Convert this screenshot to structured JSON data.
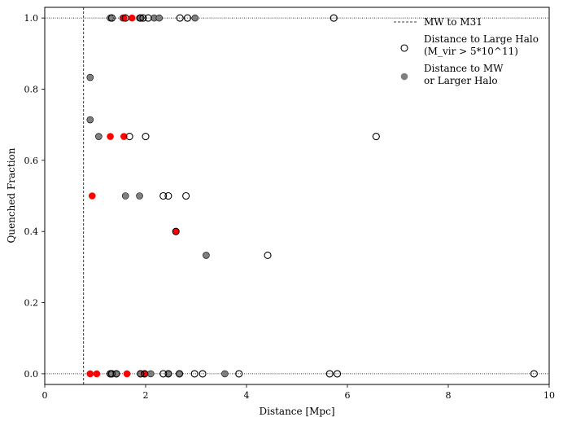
{
  "chart_data": {
    "type": "scatter",
    "xlabel": "Distance [Mpc]",
    "ylabel": "Quenched Fraction",
    "xlim": [
      0,
      10
    ],
    "ylim": [
      -0.03,
      1.03
    ],
    "xticks": [
      0,
      2,
      4,
      6,
      8,
      10
    ],
    "yticks": [
      0.0,
      0.2,
      0.4,
      0.6,
      0.8,
      1.0
    ],
    "xtick_labels": [
      "0",
      "2",
      "4",
      "6",
      "8",
      "10"
    ],
    "ytick_labels": [
      "0.0",
      "0.2",
      "0.4",
      "0.6",
      "0.8",
      "1.0"
    ],
    "grid": false,
    "legend_placement": "top-right",
    "reference_lines": [
      {
        "orientation": "vertical",
        "value": 0.77,
        "style": "dashed",
        "legend": "MW to M31"
      },
      {
        "orientation": "horizontal",
        "value": 1.0,
        "style": "dotted"
      },
      {
        "orientation": "horizontal",
        "value": 0.0,
        "style": "dotted"
      }
    ],
    "series": [
      {
        "name": "Distance to Large Halo (M_vir > 5*10^11)",
        "legend_lines": [
          "Distance to Large Halo",
          "(M_vir > 5*10^11)"
        ],
        "marker": "hollow-circle",
        "color": "#000000",
        "points": [
          [
            1.33,
            1.0
          ],
          [
            1.6,
            1.0
          ],
          [
            1.9,
            1.0
          ],
          [
            1.95,
            1.0
          ],
          [
            2.05,
            1.0
          ],
          [
            2.68,
            1.0
          ],
          [
            2.83,
            1.0
          ],
          [
            5.73,
            1.0
          ],
          [
            1.68,
            0.667
          ],
          [
            2.0,
            0.667
          ],
          [
            6.57,
            0.667
          ],
          [
            2.35,
            0.5
          ],
          [
            2.45,
            0.5
          ],
          [
            2.8,
            0.5
          ],
          [
            4.42,
            0.333
          ],
          [
            2.6,
            0.4
          ],
          [
            1.3,
            0.0
          ],
          [
            1.33,
            0.0
          ],
          [
            1.42,
            0.0
          ],
          [
            1.9,
            0.0
          ],
          [
            1.98,
            0.0
          ],
          [
            2.35,
            0.0
          ],
          [
            2.45,
            0.0
          ],
          [
            2.67,
            0.0
          ],
          [
            2.97,
            0.0
          ],
          [
            3.13,
            0.0
          ],
          [
            3.85,
            0.0
          ],
          [
            5.65,
            0.0
          ],
          [
            5.8,
            0.0
          ],
          [
            9.7,
            0.0
          ]
        ]
      },
      {
        "name": "Distance to MW or Larger Halo",
        "legend_lines": [
          "Distance to MW",
          "or Larger Halo"
        ],
        "marker": "filled-circle",
        "color": "#7f7f7f",
        "points": [
          [
            1.3,
            1.0
          ],
          [
            1.55,
            1.0
          ],
          [
            1.88,
            1.0
          ],
          [
            2.17,
            1.0
          ],
          [
            2.27,
            1.0
          ],
          [
            2.98,
            1.0
          ],
          [
            0.9,
            0.833
          ],
          [
            0.9,
            0.714
          ],
          [
            1.07,
            0.667
          ],
          [
            1.6,
            0.5
          ],
          [
            1.88,
            0.5
          ],
          [
            3.2,
            0.333
          ],
          [
            2.6,
            0.4
          ],
          [
            1.3,
            0.0
          ],
          [
            1.42,
            0.0
          ],
          [
            1.9,
            0.0
          ],
          [
            2.1,
            0.0
          ],
          [
            2.45,
            0.0
          ],
          [
            2.67,
            0.0
          ],
          [
            3.57,
            0.0
          ]
        ]
      },
      {
        "name": "Red",
        "marker": "filled-circle",
        "color": "#ff0000",
        "points": [
          [
            1.57,
            1.0
          ],
          [
            1.73,
            1.0
          ],
          [
            1.3,
            0.667
          ],
          [
            1.57,
            0.667
          ],
          [
            0.94,
            0.5
          ],
          [
            2.6,
            0.4
          ],
          [
            0.9,
            0.0
          ],
          [
            1.03,
            0.0
          ],
          [
            1.63,
            0.0
          ],
          [
            1.97,
            0.0
          ]
        ]
      }
    ]
  }
}
